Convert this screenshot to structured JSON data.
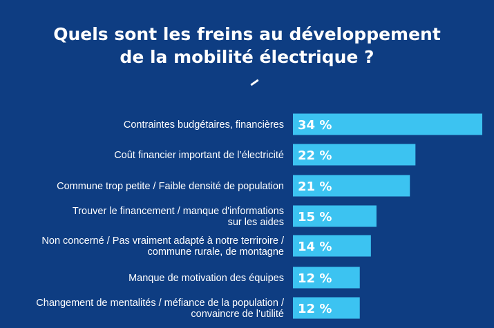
{
  "title": {
    "line1": "Quels sont les freins au développement",
    "line2": "de la mobilité électrique ?"
  },
  "colors": {
    "background": "#0e3d82",
    "bar": "#3cc3f1",
    "text": "#ffffff"
  },
  "chart_data": {
    "type": "bar",
    "orientation": "horizontal",
    "title": "Quels sont les freins au développement de la mobilité électrique ?",
    "unit": "%",
    "categories": [
      [
        "Contraintes budgétaires, financières"
      ],
      [
        "Coût financier important de l’électricité"
      ],
      [
        "Commune trop petite / Faible densité de population"
      ],
      [
        "Trouver le financement / manque d'informations",
        "sur les aides"
      ],
      [
        "Non concerné / Pas vraiment adapté à notre terriroire /",
        "commune rurale, de montagne"
      ],
      [
        "Manque de motivation des équipes"
      ],
      [
        "Changement de mentalités / méfiance de la population /",
        "convaincre de l’utilité"
      ]
    ],
    "values": [
      34,
      22,
      21,
      15,
      14,
      12,
      12
    ],
    "value_labels": [
      "34 %",
      "22 %",
      "21 %",
      "15 %",
      "14 %",
      "12 %",
      "12 %"
    ],
    "grid": false,
    "legend": "none"
  }
}
